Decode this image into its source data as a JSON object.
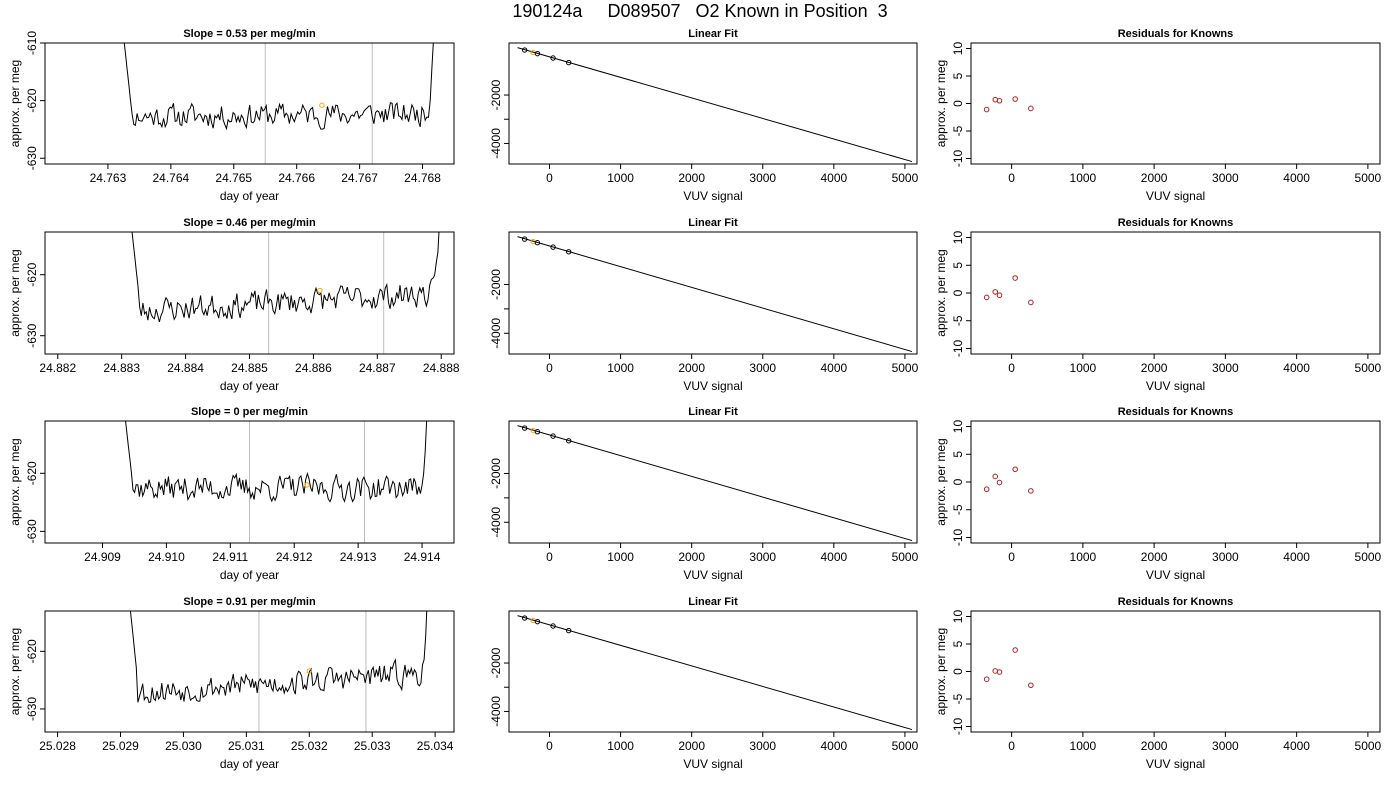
{
  "figure": {
    "title": "190124a     D089507   O2 Known in Position  3",
    "colors": {
      "line": "#000000",
      "marker_black": "#000000",
      "marker_orange": "#ffa500",
      "residual": "#b22222",
      "vline": "#bebebe",
      "axis": "#000000"
    }
  },
  "chart_data": [
    {
      "type": "line",
      "row": 1,
      "col": 1,
      "title": "Slope =  0.53  per meg/min",
      "xlabel": "day of year",
      "ylabel": "approx. per meg",
      "xlim": [
        24.762,
        24.7685
      ],
      "ylim": [
        -631,
        -610
      ],
      "xticks": [
        24.763,
        24.764,
        24.765,
        24.766,
        24.767,
        24.768
      ],
      "xtick_labels": [
        "24.763",
        "24.764",
        "24.765",
        "24.766",
        "24.767",
        "24.768"
      ],
      "yticks": [
        -630,
        -620,
        -610
      ],
      "ytick_labels": [
        "-630",
        "-620",
        "-610"
      ],
      "x_start": 24.7632,
      "x_end": 24.7682,
      "baseline": -622.5,
      "trend": 0.6,
      "noise": 1.8,
      "seed": 11,
      "vlines": [
        24.7655,
        24.7672
      ],
      "marker": {
        "x": 24.7664,
        "y": -620.8
      }
    },
    {
      "type": "line",
      "row": 2,
      "col": 1,
      "title": "Slope =  0.46  per meg/min",
      "xlabel": "day of year",
      "ylabel": "approx. per meg",
      "xlim": [
        24.8818,
        24.8882
      ],
      "ylim": [
        -633,
        -613
      ],
      "xticks": [
        24.882,
        24.883,
        24.884,
        24.885,
        24.886,
        24.887,
        24.888
      ],
      "xtick_labels": [
        "24.882",
        "24.883",
        "24.884",
        "24.885",
        "24.886",
        "24.887",
        "24.888"
      ],
      "yticks": [
        -630,
        -620
      ],
      "ytick_labels": [
        "-630",
        "-620"
      ],
      "x_start": 24.8831,
      "x_end": 24.888,
      "baseline": -624.5,
      "trend": 3.0,
      "noise": 1.8,
      "seed": 23,
      "vlines": [
        24.8853,
        24.8871
      ],
      "marker": {
        "x": 24.8861,
        "y": -622.6
      }
    },
    {
      "type": "line",
      "row": 3,
      "col": 1,
      "title": "Slope =  0  per meg/min",
      "xlabel": "day of year",
      "ylabel": "approx. per meg",
      "xlim": [
        24.9081,
        24.9145
      ],
      "ylim": [
        -632,
        -611
      ],
      "xticks": [
        24.909,
        24.91,
        24.911,
        24.912,
        24.913,
        24.914
      ],
      "xtick_labels": [
        "24.909",
        "24.910",
        "24.911",
        "24.912",
        "24.913",
        "24.914"
      ],
      "yticks": [
        -630,
        -620
      ],
      "ytick_labels": [
        "-630",
        "-620"
      ],
      "x_start": 24.9093,
      "x_end": 24.9141,
      "baseline": -622.5,
      "trend": 0.0,
      "noise": 1.9,
      "seed": 37,
      "vlines": [
        24.9113,
        24.9131
      ],
      "marker": {
        "x": 24.9122,
        "y": -622.0
      }
    },
    {
      "type": "line",
      "row": 4,
      "col": 1,
      "title": "Slope =  0.91  per meg/min",
      "xlabel": "day of year",
      "ylabel": "approx. per meg",
      "xlim": [
        25.0278,
        25.0343
      ],
      "ylim": [
        -634,
        -613
      ],
      "xticks": [
        25.028,
        25.029,
        25.03,
        25.031,
        25.032,
        25.033,
        25.034
      ],
      "xtick_labels": [
        "25.028",
        "25.029",
        "25.030",
        "25.031",
        "25.032",
        "25.033",
        "25.034"
      ],
      "yticks": [
        -630,
        -620
      ],
      "ytick_labels": [
        "-630",
        "-620"
      ],
      "x_start": 25.0291,
      "x_end": 25.0339,
      "baseline": -625.5,
      "trend": 3.5,
      "noise": 1.9,
      "seed": 53,
      "vlines": [
        25.0312,
        25.0329
      ],
      "marker": {
        "x": 25.032,
        "y": -623.4
      }
    },
    {
      "type": "scatter",
      "row": 1,
      "col": 2,
      "title": "Linear Fit",
      "xlabel": "VUV signal",
      "ylabel": "",
      "xlim": [
        -570,
        5170
      ],
      "ylim": [
        -4850,
        150
      ],
      "xticks": [
        0,
        1000,
        2000,
        3000,
        4000,
        5000
      ],
      "xtick_labels": [
        "0",
        "1000",
        "2000",
        "3000",
        "4000",
        "5000"
      ],
      "yticks": [
        -4000,
        -3000,
        -2000
      ],
      "ytick_labels": [
        "-4000",
        "",
        "-2000"
      ],
      "fit_line": [
        [
          -450,
          -40
        ],
        [
          5100,
          -4750
        ]
      ],
      "points": [
        {
          "x": -350,
          "y": -140,
          "color": "black"
        },
        {
          "x": -230,
          "y": -240,
          "color": "orange"
        },
        {
          "x": -170,
          "y": -290,
          "color": "black"
        },
        {
          "x": 50,
          "y": -470,
          "color": "black"
        },
        {
          "x": 270,
          "y": -660,
          "color": "black"
        }
      ]
    },
    {
      "type": "scatter",
      "row": 2,
      "col": 2,
      "title": "Linear Fit",
      "xlabel": "VUV signal",
      "ylabel": "",
      "xlim": [
        -570,
        5170
      ],
      "ylim": [
        -4850,
        150
      ],
      "xticks": [
        0,
        1000,
        2000,
        3000,
        4000,
        5000
      ],
      "xtick_labels": [
        "0",
        "1000",
        "2000",
        "3000",
        "4000",
        "5000"
      ],
      "yticks": [
        -4000,
        -3000,
        -2000
      ],
      "ytick_labels": [
        "-4000",
        "",
        "-2000"
      ],
      "fit_line": [
        [
          -450,
          -40
        ],
        [
          5100,
          -4750
        ]
      ],
      "points": [
        {
          "x": -350,
          "y": -140,
          "color": "black"
        },
        {
          "x": -230,
          "y": -240,
          "color": "orange"
        },
        {
          "x": -170,
          "y": -290,
          "color": "black"
        },
        {
          "x": 50,
          "y": -470,
          "color": "black"
        },
        {
          "x": 270,
          "y": -660,
          "color": "black"
        }
      ]
    },
    {
      "type": "scatter",
      "row": 3,
      "col": 2,
      "title": "Linear Fit",
      "xlabel": "VUV signal",
      "ylabel": "",
      "xlim": [
        -570,
        5170
      ],
      "ylim": [
        -4850,
        150
      ],
      "xticks": [
        0,
        1000,
        2000,
        3000,
        4000,
        5000
      ],
      "xtick_labels": [
        "0",
        "1000",
        "2000",
        "3000",
        "4000",
        "5000"
      ],
      "yticks": [
        -4000,
        -3000,
        -2000
      ],
      "ytick_labels": [
        "-4000",
        "",
        "-2000"
      ],
      "fit_line": [
        [
          -450,
          -40
        ],
        [
          5100,
          -4750
        ]
      ],
      "points": [
        {
          "x": -350,
          "y": -140,
          "color": "black"
        },
        {
          "x": -230,
          "y": -240,
          "color": "orange"
        },
        {
          "x": -170,
          "y": -290,
          "color": "black"
        },
        {
          "x": 50,
          "y": -470,
          "color": "black"
        },
        {
          "x": 270,
          "y": -660,
          "color": "black"
        }
      ]
    },
    {
      "type": "scatter",
      "row": 4,
      "col": 2,
      "title": "Linear Fit",
      "xlabel": "VUV signal",
      "ylabel": "",
      "xlim": [
        -570,
        5170
      ],
      "ylim": [
        -4850,
        150
      ],
      "xticks": [
        0,
        1000,
        2000,
        3000,
        4000,
        5000
      ],
      "xtick_labels": [
        "0",
        "1000",
        "2000",
        "3000",
        "4000",
        "5000"
      ],
      "yticks": [
        -4000,
        -3000,
        -2000
      ],
      "ytick_labels": [
        "-4000",
        "",
        "-2000"
      ],
      "fit_line": [
        [
          -450,
          -40
        ],
        [
          5100,
          -4750
        ]
      ],
      "points": [
        {
          "x": -350,
          "y": -140,
          "color": "black"
        },
        {
          "x": -230,
          "y": -240,
          "color": "orange"
        },
        {
          "x": -170,
          "y": -290,
          "color": "black"
        },
        {
          "x": 50,
          "y": -470,
          "color": "black"
        },
        {
          "x": 270,
          "y": -660,
          "color": "black"
        }
      ]
    },
    {
      "type": "scatter",
      "row": 1,
      "col": 3,
      "title": "Residuals for Knowns",
      "xlabel": "VUV signal",
      "ylabel": "approx. per meg",
      "xlim": [
        -570,
        5170
      ],
      "ylim": [
        -11,
        11
      ],
      "xticks": [
        0,
        1000,
        2000,
        3000,
        4000,
        5000
      ],
      "xtick_labels": [
        "0",
        "1000",
        "2000",
        "3000",
        "4000",
        "5000"
      ],
      "yticks": [
        -10,
        -5,
        0,
        5,
        10
      ],
      "ytick_labels": [
        "-10",
        "-5",
        "0",
        "5",
        "10"
      ],
      "points": [
        {
          "x": -350,
          "y": -1.1
        },
        {
          "x": -230,
          "y": 0.7
        },
        {
          "x": -170,
          "y": 0.5
        },
        {
          "x": 50,
          "y": 0.8
        },
        {
          "x": 270,
          "y": -0.9
        }
      ]
    },
    {
      "type": "scatter",
      "row": 2,
      "col": 3,
      "title": "Residuals for Knowns",
      "xlabel": "VUV signal",
      "ylabel": "approx. per meg",
      "xlim": [
        -570,
        5170
      ],
      "ylim": [
        -11,
        11
      ],
      "xticks": [
        0,
        1000,
        2000,
        3000,
        4000,
        5000
      ],
      "xtick_labels": [
        "0",
        "1000",
        "2000",
        "3000",
        "4000",
        "5000"
      ],
      "yticks": [
        -10,
        -5,
        0,
        5,
        10
      ],
      "ytick_labels": [
        "-10",
        "-5",
        "0",
        "5",
        "10"
      ],
      "points": [
        {
          "x": -350,
          "y": -0.8
        },
        {
          "x": -230,
          "y": 0.2
        },
        {
          "x": -170,
          "y": -0.4
        },
        {
          "x": 50,
          "y": 2.7
        },
        {
          "x": 270,
          "y": -1.7
        }
      ]
    },
    {
      "type": "scatter",
      "row": 3,
      "col": 3,
      "title": "Residuals for Knowns",
      "xlabel": "VUV signal",
      "ylabel": "approx. per meg",
      "xlim": [
        -570,
        5170
      ],
      "ylim": [
        -11,
        11
      ],
      "xticks": [
        0,
        1000,
        2000,
        3000,
        4000,
        5000
      ],
      "xtick_labels": [
        "0",
        "1000",
        "2000",
        "3000",
        "4000",
        "5000"
      ],
      "yticks": [
        -10,
        -5,
        0,
        5,
        10
      ],
      "ytick_labels": [
        "-10",
        "-5",
        "0",
        "5",
        "10"
      ],
      "points": [
        {
          "x": -350,
          "y": -1.3
        },
        {
          "x": -230,
          "y": 1.0
        },
        {
          "x": -170,
          "y": -0.1
        },
        {
          "x": 50,
          "y": 2.3
        },
        {
          "x": 270,
          "y": -1.6
        }
      ]
    },
    {
      "type": "scatter",
      "row": 4,
      "col": 3,
      "title": "Residuals for Knowns",
      "xlabel": "VUV signal",
      "ylabel": "approx. per meg",
      "xlim": [
        -570,
        5170
      ],
      "ylim": [
        -11,
        11
      ],
      "xticks": [
        0,
        1000,
        2000,
        3000,
        4000,
        5000
      ],
      "xtick_labels": [
        "0",
        "1000",
        "2000",
        "3000",
        "4000",
        "5000"
      ],
      "yticks": [
        -10,
        -5,
        0,
        5,
        10
      ],
      "ytick_labels": [
        "-10",
        "-5",
        "0",
        "5",
        "10"
      ],
      "points": [
        {
          "x": -350,
          "y": -1.4
        },
        {
          "x": -230,
          "y": 0.1
        },
        {
          "x": -170,
          "y": -0.1
        },
        {
          "x": 50,
          "y": 3.9
        },
        {
          "x": 270,
          "y": -2.5
        }
      ]
    }
  ]
}
